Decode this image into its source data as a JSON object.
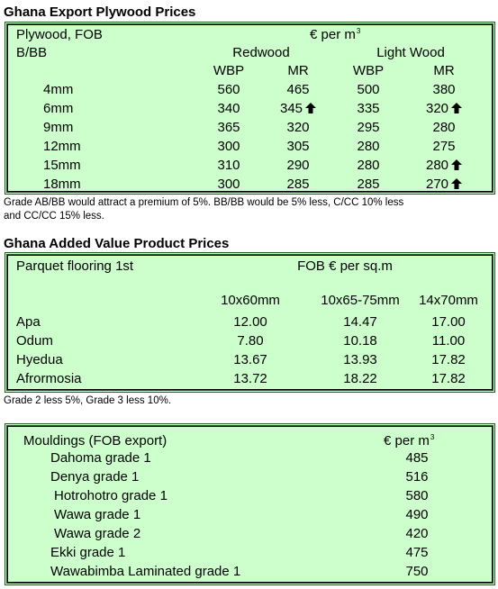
{
  "plywood": {
    "title": "Ghana Export Plywood Prices",
    "label_fob": "Plywood, FOB",
    "unit": "€ per m",
    "unit_sup": "3",
    "label_grade": "B/BB",
    "group_redwood": "Redwood",
    "group_lightwood": "Light Wood",
    "col_wbp": "WBP",
    "col_mr": "MR",
    "rows": [
      {
        "size": "4mm",
        "rw_wbp": "560",
        "rw_mr": "465",
        "lw_wbp": "500",
        "lw_mr": "380"
      },
      {
        "size": "6mm",
        "rw_wbp": "340",
        "rw_mr": "345",
        "lw_wbp": "335",
        "lw_mr": "320"
      },
      {
        "size": "9mm",
        "rw_wbp": "365",
        "rw_mr": "320",
        "lw_wbp": "295",
        "lw_mr": "280"
      },
      {
        "size": "12mm",
        "rw_wbp": "300",
        "rw_mr": "305",
        "lw_wbp": "280",
        "lw_mr": "275"
      },
      {
        "size": "15mm",
        "rw_wbp": "310",
        "rw_mr": "290",
        "lw_wbp": "280",
        "lw_mr": "280"
      },
      {
        "size": "18mm",
        "rw_wbp": "300",
        "rw_mr": "285",
        "lw_wbp": "285",
        "lw_mr": "270"
      }
    ],
    "note_line1": "Grade AB/BB would attract a premium of 5%. BB/BB would be 5% less, C/CC 10% less",
    "note_line2": "and CC/CC 15% less."
  },
  "added_value": {
    "title": "Ghana Added Value Product Prices",
    "label": "Parquet flooring 1st",
    "unit": "FOB € per sq.m",
    "col1": "10x60mm",
    "col2": "10x65-75mm",
    "col3": "14x70mm",
    "rows": [
      {
        "name": "Apa",
        "v1": "12.00",
        "v2": "14.47",
        "v3": "17.00"
      },
      {
        "name": "Odum",
        "v1": "7.80",
        "v2": "10.18",
        "v3": "11.00"
      },
      {
        "name": "Hyedua",
        "v1": "13.67",
        "v2": "13.93",
        "v3": "17.82"
      },
      {
        "name": "Afrormosia",
        "v1": "13.72",
        "v2": "18.22",
        "v3": "17.82"
      }
    ],
    "note": "Grade 2 less 5%, Grade 3 less 10%."
  },
  "mouldings": {
    "label": "Mouldings (FOB export)",
    "unit": "€ per m",
    "unit_sup": "3",
    "rows": [
      {
        "name": "Dahoma grade 1",
        "price": "485"
      },
      {
        "name": "Denya grade 1",
        "price": "516"
      },
      {
        "name": "Hotrohotro grade 1",
        "price": "580"
      },
      {
        "name": "Wawa grade 1",
        "price": "490"
      },
      {
        "name": "Wawa grade 2",
        "price": "420"
      },
      {
        "name": "Ekki grade 1",
        "price": "475"
      },
      {
        "name": "Wawabimba Laminated grade 1",
        "price": "750"
      }
    ]
  }
}
